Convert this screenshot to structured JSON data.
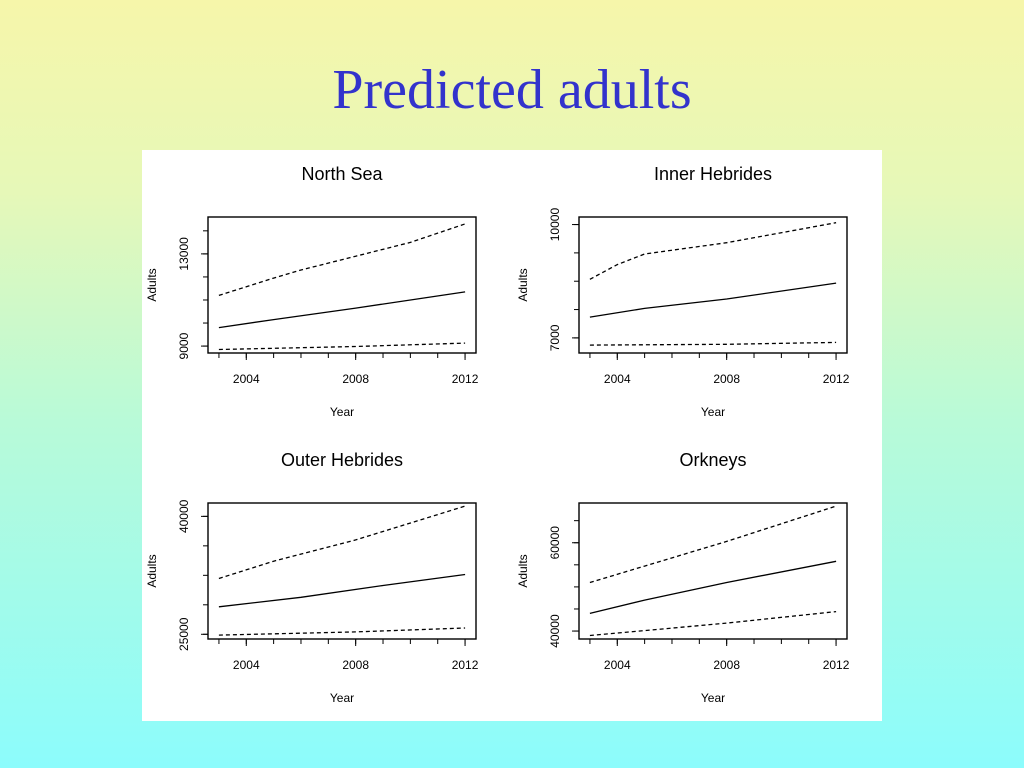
{
  "slide": {
    "title": "Predicted adults",
    "title_color": "#3333cc"
  },
  "chart_data": [
    {
      "type": "line",
      "title": "North Sea",
      "xlabel": "Year",
      "ylabel": "Adults",
      "x_ticks": [
        2004,
        2008,
        2012
      ],
      "y_ticks": [
        9000,
        13000
      ],
      "xlim": [
        2002.6,
        2012.4
      ],
      "ylim": [
        8700,
        14600
      ],
      "series": [
        {
          "style": "dashed",
          "x": [
            2003,
            2005,
            2006,
            2008,
            2010,
            2012
          ],
          "y": [
            11200,
            11950,
            12300,
            12900,
            13500,
            14300
          ]
        },
        {
          "style": "solid",
          "x": [
            2003,
            2005,
            2008,
            2012
          ],
          "y": [
            9800,
            10150,
            10650,
            11350
          ]
        },
        {
          "style": "dashed",
          "x": [
            2003,
            2008,
            2012
          ],
          "y": [
            8850,
            8980,
            9130
          ]
        }
      ]
    },
    {
      "type": "line",
      "title": "Inner Hebrides",
      "xlabel": "Year",
      "ylabel": "Adults",
      "x_ticks": [
        2004,
        2008,
        2012
      ],
      "y_ticks": [
        7000,
        10000
      ],
      "xlim": [
        2002.6,
        2012.4
      ],
      "ylim": [
        6600,
        10200
      ],
      "series": [
        {
          "style": "dashed",
          "x": [
            2003,
            2004,
            2005,
            2008,
            2012
          ],
          "y": [
            8550,
            8940,
            9220,
            9520,
            10050
          ]
        },
        {
          "style": "solid",
          "x": [
            2003,
            2005,
            2008,
            2012
          ],
          "y": [
            7550,
            7780,
            8030,
            8450
          ]
        },
        {
          "style": "dashed",
          "x": [
            2003,
            2008,
            2012
          ],
          "y": [
            6810,
            6830,
            6880
          ]
        }
      ]
    },
    {
      "type": "line",
      "title": "Outer Hebrides",
      "xlabel": "Year",
      "ylabel": "Adults",
      "x_ticks": [
        2004,
        2008,
        2012
      ],
      "y_ticks": [
        25000,
        40000
      ],
      "xlim": [
        2002.6,
        2012.4
      ],
      "ylim": [
        24400,
        41700
      ],
      "series": [
        {
          "style": "dashed",
          "x": [
            2003,
            2005,
            2008,
            2012
          ],
          "y": [
            32100,
            34300,
            37000,
            41300
          ]
        },
        {
          "style": "solid",
          "x": [
            2003,
            2006,
            2009,
            2012
          ],
          "y": [
            28500,
            29700,
            31200,
            32600
          ]
        },
        {
          "style": "dashed",
          "x": [
            2003,
            2008,
            2012
          ],
          "y": [
            24900,
            25300,
            25800
          ]
        }
      ]
    },
    {
      "type": "line",
      "title": "Orkneys",
      "xlabel": "Year",
      "ylabel": "Adults",
      "x_ticks": [
        2004,
        2008,
        2012
      ],
      "y_ticks": [
        40000,
        60000
      ],
      "xlim": [
        2002.6,
        2012.4
      ],
      "ylim": [
        38200,
        69000
      ],
      "series": [
        {
          "style": "dashed",
          "x": [
            2003,
            2005,
            2008,
            2012
          ],
          "y": [
            51000,
            54700,
            60300,
            68300
          ]
        },
        {
          "style": "solid",
          "x": [
            2003,
            2005,
            2008,
            2012
          ],
          "y": [
            44000,
            47000,
            51000,
            55800
          ]
        },
        {
          "style": "dashed",
          "x": [
            2003,
            2005,
            2008,
            2012
          ],
          "y": [
            39000,
            40100,
            41800,
            44400
          ]
        }
      ]
    }
  ]
}
